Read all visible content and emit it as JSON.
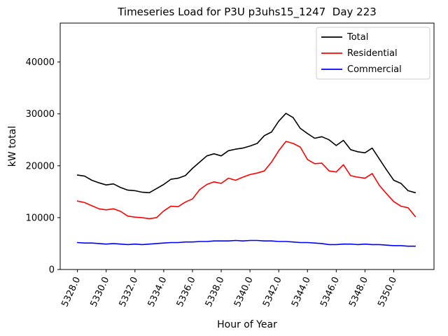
{
  "chart_data": {
    "type": "line",
    "title": "Timeseries Load for P3U p3uhs15_1247  Day 223",
    "xlabel": "Hour of Year",
    "ylabel": "kW total",
    "xlim": [
      5326.8,
      5352.8
    ],
    "ylim": [
      0,
      47500
    ],
    "grid": false,
    "xticks": [
      5328,
      5330,
      5332,
      5334,
      5336,
      5338,
      5340,
      5342,
      5344,
      5346,
      5348,
      5350
    ],
    "xtick_labels": [
      "5328.0",
      "5330.0",
      "5332.0",
      "5334.0",
      "5336.0",
      "5338.0",
      "5340.0",
      "5342.0",
      "5344.0",
      "5346.0",
      "5348.0",
      "5350.0"
    ],
    "yticks": [
      0,
      10000,
      20000,
      30000,
      40000
    ],
    "legend": {
      "position": "upper right"
    },
    "x": [
      5328.0,
      5328.5,
      5329.0,
      5329.5,
      5330.0,
      5330.5,
      5331.0,
      5331.5,
      5332.0,
      5332.5,
      5333.0,
      5333.5,
      5334.0,
      5334.5,
      5335.0,
      5335.5,
      5336.0,
      5336.5,
      5337.0,
      5337.5,
      5338.0,
      5338.5,
      5339.0,
      5339.5,
      5340.0,
      5340.5,
      5341.0,
      5341.5,
      5342.0,
      5342.5,
      5343.0,
      5343.5,
      5344.0,
      5344.5,
      5345.0,
      5345.5,
      5346.0,
      5346.5,
      5347.0,
      5347.5,
      5348.0,
      5348.5,
      5349.0,
      5349.5,
      5350.0,
      5350.5,
      5351.0,
      5351.5
    ],
    "series": [
      {
        "name": "Total",
        "color": "#000000",
        "values": [
          18200,
          18000,
          17200,
          16700,
          16300,
          16500,
          15800,
          15300,
          15200,
          14900,
          14800,
          15600,
          16400,
          17400,
          17600,
          18100,
          19500,
          20700,
          21900,
          22300,
          21900,
          22900,
          23200,
          23400,
          23800,
          24300,
          25800,
          26500,
          28600,
          30100,
          29300,
          27200,
          26200,
          25300,
          25600,
          25000,
          23900,
          24900,
          23100,
          22700,
          22500,
          23400,
          21300,
          19200,
          17200,
          16600,
          15200,
          14800
        ]
      },
      {
        "name": "Residential",
        "color": "#ff0000",
        "values": [
          13200,
          12900,
          12300,
          11700,
          11500,
          11700,
          11200,
          10300,
          10100,
          10000,
          9800,
          10000,
          11300,
          12200,
          12100,
          13000,
          13600,
          15400,
          16400,
          16900,
          16600,
          17600,
          17200,
          17800,
          18300,
          18600,
          19000,
          20700,
          22900,
          24700,
          24300,
          23600,
          21200,
          20400,
          20500,
          19000,
          18800,
          20200,
          18100,
          17800,
          17600,
          18500,
          16200,
          14600,
          13100,
          12200,
          11900,
          10200
        ]
      },
      {
        "name": "Commercial",
        "color": "#0000ff",
        "values": [
          5200,
          5100,
          5100,
          5000,
          4900,
          5000,
          4900,
          4800,
          4900,
          4800,
          4900,
          5000,
          5100,
          5200,
          5200,
          5300,
          5300,
          5400,
          5400,
          5500,
          5500,
          5500,
          5600,
          5500,
          5600,
          5600,
          5500,
          5500,
          5400,
          5400,
          5300,
          5200,
          5200,
          5100,
          5000,
          4800,
          4800,
          4900,
          4900,
          4800,
          4900,
          4800,
          4800,
          4700,
          4600,
          4600,
          4500,
          4500
        ]
      }
    ]
  }
}
